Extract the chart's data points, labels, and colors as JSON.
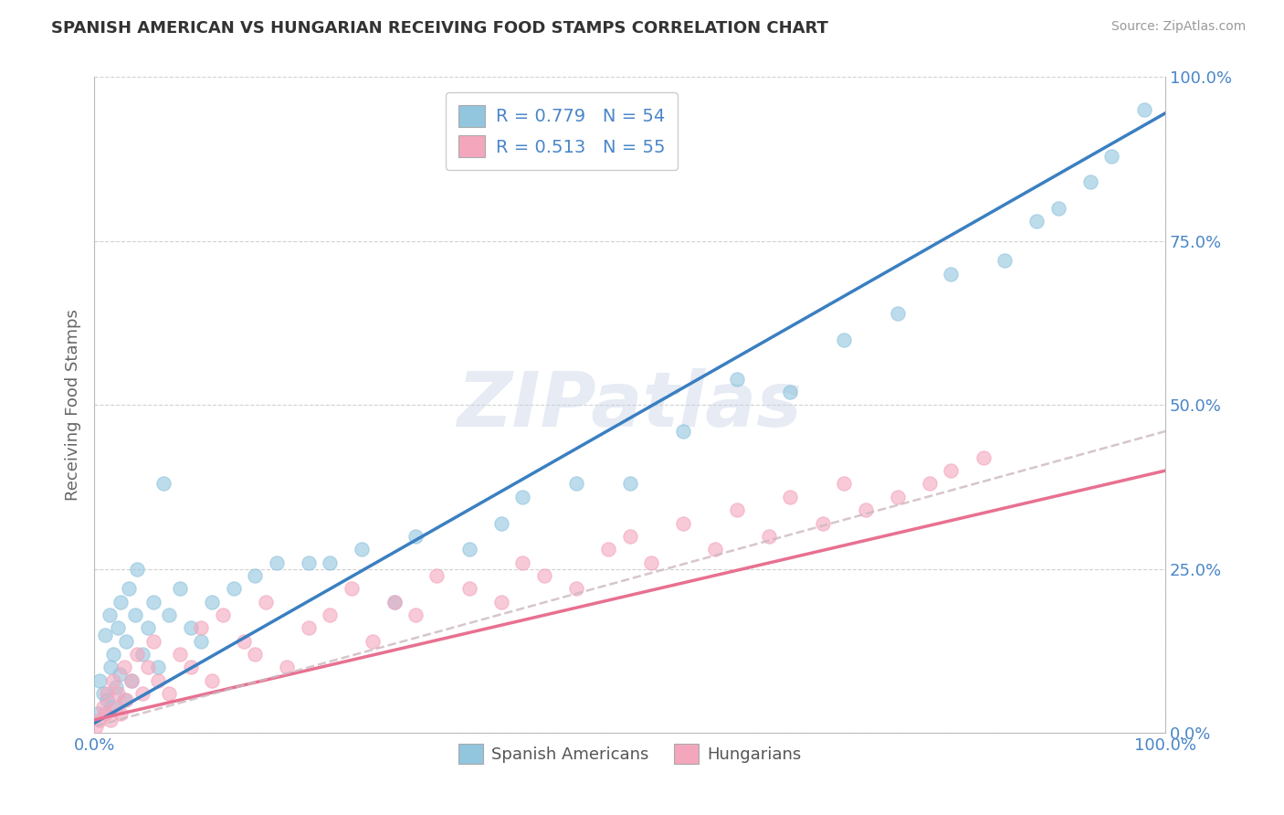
{
  "title": "SPANISH AMERICAN VS HUNGARIAN RECEIVING FOOD STAMPS CORRELATION CHART",
  "source": "Source: ZipAtlas.com",
  "ylabel": "Receiving Food Stamps",
  "legend_line1": "R = 0.779   N = 54",
  "legend_line2": "R = 0.513   N = 55",
  "blue_color": "#92c5de",
  "pink_color": "#f4a6bd",
  "blue_line_color": "#3a7fc1",
  "pink_line_color": "#e87090",
  "dashed_line_color": "#ccb8c0",
  "watermark": "ZIPatlas",
  "blue_slope": 0.93,
  "blue_intercept": 1.5,
  "pink_slope": 0.38,
  "pink_intercept": 2.0,
  "dashed_slope": 0.45,
  "dashed_intercept": 1.0,
  "xlim": [
    0,
    100
  ],
  "ylim": [
    0,
    100
  ],
  "ytick_vals": [
    0,
    25,
    50,
    75,
    100
  ],
  "ytick_labels": [
    "0.0%",
    "25.0%",
    "50.0%",
    "75.0%",
    "100.0%"
  ],
  "xtick_vals": [
    0,
    100
  ],
  "xtick_labels": [
    "0.0%",
    "100.0%"
  ],
  "blue_x": [
    0.3,
    0.5,
    0.8,
    1.0,
    1.2,
    1.4,
    1.5,
    1.6,
    1.8,
    2.0,
    2.2,
    2.4,
    2.5,
    2.8,
    3.0,
    3.2,
    3.5,
    3.8,
    4.0,
    4.5,
    5.0,
    5.5,
    6.0,
    6.5,
    7.0,
    8.0,
    9.0,
    10.0,
    11.0,
    13.0,
    15.0,
    17.0,
    20.0,
    22.0,
    25.0,
    28.0,
    30.0,
    35.0,
    38.0,
    40.0,
    45.0,
    50.0,
    55.0,
    60.0,
    65.0,
    70.0,
    75.0,
    80.0,
    85.0,
    88.0,
    90.0,
    93.0,
    95.0,
    98.0
  ],
  "blue_y": [
    3.0,
    8.0,
    6.0,
    15.0,
    5.0,
    18.0,
    10.0,
    4.0,
    12.0,
    7.0,
    16.0,
    9.0,
    20.0,
    5.0,
    14.0,
    22.0,
    8.0,
    18.0,
    25.0,
    12.0,
    16.0,
    20.0,
    10.0,
    38.0,
    18.0,
    22.0,
    16.0,
    14.0,
    20.0,
    22.0,
    24.0,
    26.0,
    26.0,
    26.0,
    28.0,
    20.0,
    30.0,
    28.0,
    32.0,
    36.0,
    38.0,
    38.0,
    46.0,
    54.0,
    52.0,
    60.0,
    64.0,
    70.0,
    72.0,
    78.0,
    80.0,
    84.0,
    88.0,
    95.0
  ],
  "pink_x": [
    0.2,
    0.5,
    0.8,
    1.0,
    1.2,
    1.5,
    1.8,
    2.0,
    2.2,
    2.5,
    2.8,
    3.0,
    3.5,
    4.0,
    4.5,
    5.0,
    5.5,
    6.0,
    7.0,
    8.0,
    9.0,
    10.0,
    11.0,
    12.0,
    14.0,
    15.0,
    16.0,
    18.0,
    20.0,
    22.0,
    24.0,
    26.0,
    28.0,
    30.0,
    32.0,
    35.0,
    38.0,
    40.0,
    42.0,
    45.0,
    48.0,
    50.0,
    52.0,
    55.0,
    58.0,
    60.0,
    63.0,
    65.0,
    68.0,
    70.0,
    72.0,
    75.0,
    78.0,
    80.0,
    83.0
  ],
  "pink_y": [
    1.0,
    2.0,
    4.0,
    3.0,
    6.0,
    2.0,
    8.0,
    4.0,
    6.0,
    3.0,
    10.0,
    5.0,
    8.0,
    12.0,
    6.0,
    10.0,
    14.0,
    8.0,
    6.0,
    12.0,
    10.0,
    16.0,
    8.0,
    18.0,
    14.0,
    12.0,
    20.0,
    10.0,
    16.0,
    18.0,
    22.0,
    14.0,
    20.0,
    18.0,
    24.0,
    22.0,
    20.0,
    26.0,
    24.0,
    22.0,
    28.0,
    30.0,
    26.0,
    32.0,
    28.0,
    34.0,
    30.0,
    36.0,
    32.0,
    38.0,
    34.0,
    36.0,
    38.0,
    40.0,
    42.0
  ]
}
